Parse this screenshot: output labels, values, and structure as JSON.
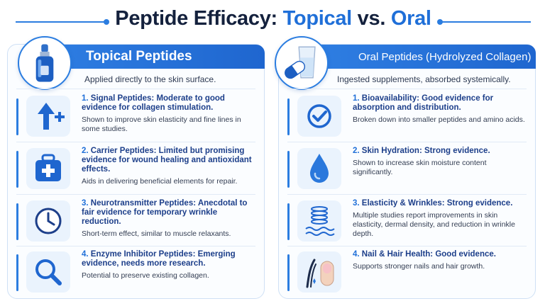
{
  "title": {
    "part1": "Peptide Efficacy: ",
    "part2": "Topical",
    "part3": " vs. ",
    "part4": "Oral"
  },
  "topical": {
    "heading": "Topical Peptides",
    "subtitle": "Applied directly to the skin surface.",
    "hero_icon": "serum-dropper-bottle-icon",
    "items": [
      {
        "num": "1.",
        "title": "Signal Peptides: Moderate to good evidence for collagen stimulation.",
        "desc": "Shown to improve skin elasticity and fine lines in some studies.",
        "icon": "arrow-up-plus-icon"
      },
      {
        "num": "2.",
        "title": "Carrier Peptides: Limited but promising evidence for wound healing and antioxidant effects.",
        "desc": "Aids in delivering beneficial elements for repair.",
        "icon": "medical-kit-icon"
      },
      {
        "num": "3.",
        "title": "Neurotransmitter Peptides: Anecdotal to fair evidence for temporary wrinkle reduction.",
        "desc": "Short-term effect, similar to muscle relaxants.",
        "icon": "clock-icon"
      },
      {
        "num": "4.",
        "title": "Enzyme Inhibitor Peptides: Emerging evidence, needs more research.",
        "desc": "Potential to preserve existing collagen.",
        "icon": "magnifier-icon"
      }
    ]
  },
  "oral": {
    "heading": "Oral Peptides (Hydrolyzed Collagen)",
    "subtitle": "Ingested supplements, absorbed systemically.",
    "hero_icon": "capsule-and-glass-icon",
    "items": [
      {
        "num": "1.",
        "title": "Bioavailability: Good evidence for absorption and distribution.",
        "desc": "Broken down into smaller peptides and amino acids.",
        "icon": "check-circle-icon"
      },
      {
        "num": "2.",
        "title": "Skin Hydration: Strong evidence.",
        "desc": "Shown to increase skin moisture content significantly.",
        "icon": "water-drop-icon"
      },
      {
        "num": "3.",
        "title": "Elasticity & Wrinkles: Strong evidence.",
        "desc": "Multiple studies report improvements in skin elasticity, dermal density, and reduction in wrinkle depth.",
        "icon": "spring-waves-icon"
      },
      {
        "num": "4.",
        "title": "Nail & Hair Health: Good evidence.",
        "desc": "Supports stronger nails and hair growth.",
        "icon": "hair-nail-icon"
      }
    ]
  },
  "colors": {
    "accent": "#1f6fd8",
    "title": "#14213d",
    "item_heading": "#1d3f8a"
  }
}
